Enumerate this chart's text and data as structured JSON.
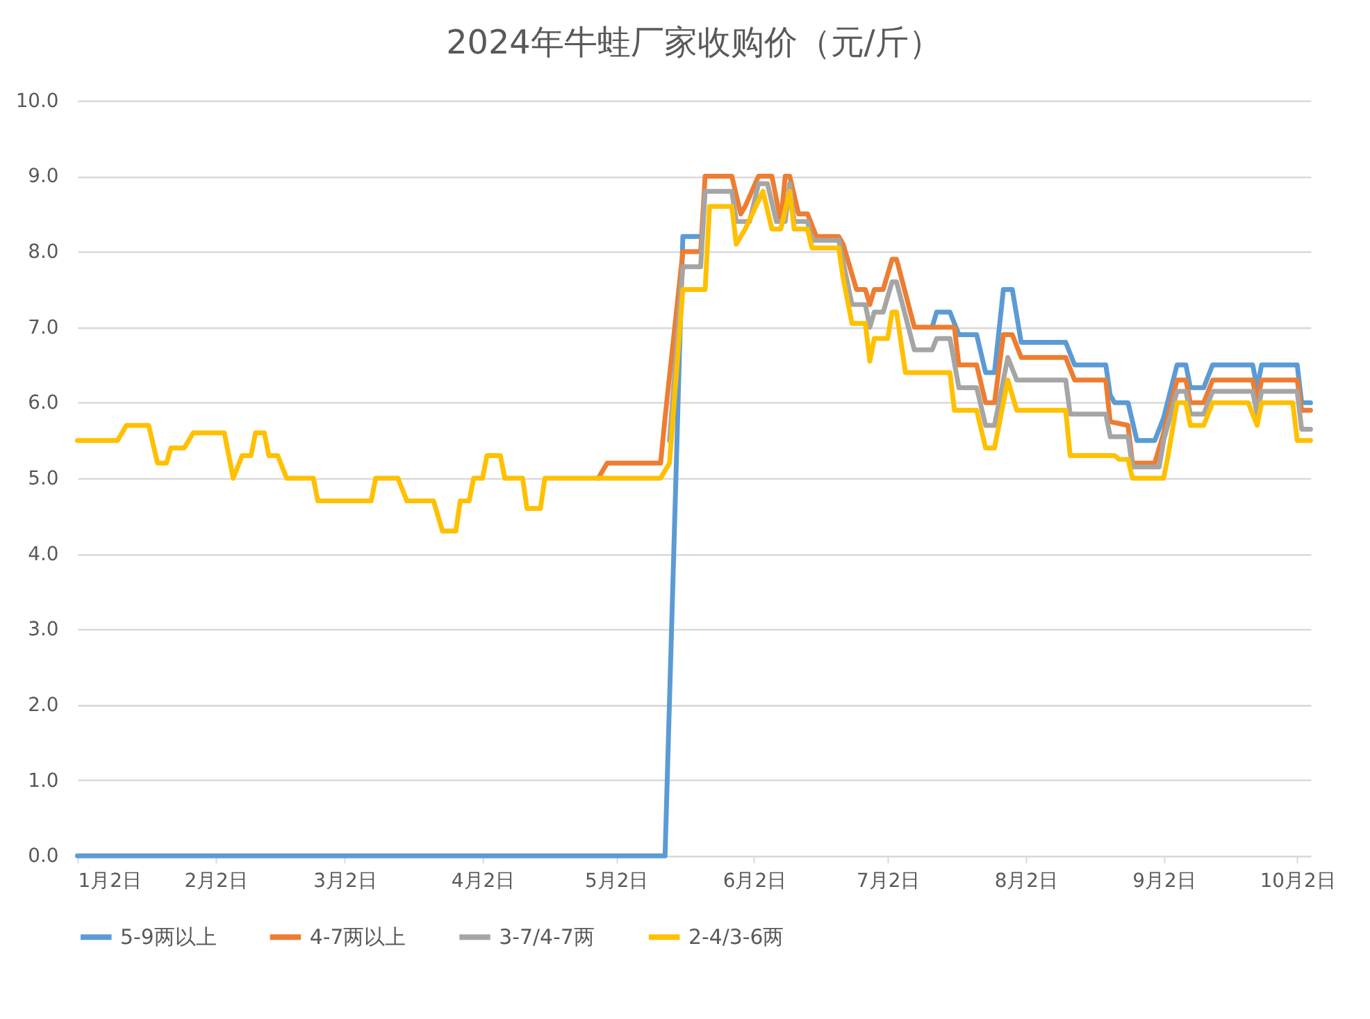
{
  "chart_data": {
    "type": "line",
    "title": "2024年牛蛙厂家收购价（元/斤）",
    "xlim": [
      "2024-01-02",
      "2024-10-05"
    ],
    "xticks": [
      {
        "value": "2024-01-02",
        "label": "1月2日"
      },
      {
        "value": "2024-02-02",
        "label": "2月2日"
      },
      {
        "value": "2024-03-02",
        "label": "3月2日"
      },
      {
        "value": "2024-04-02",
        "label": "4月2日"
      },
      {
        "value": "2024-05-02",
        "label": "5月2日"
      },
      {
        "value": "2024-06-02",
        "label": "6月2日"
      },
      {
        "value": "2024-07-02",
        "label": "7月2日"
      },
      {
        "value": "2024-08-02",
        "label": "8月2日"
      },
      {
        "value": "2024-09-02",
        "label": "9月2日"
      },
      {
        "value": "2024-10-02",
        "label": "10月2日"
      }
    ],
    "ylim": [
      0,
      10
    ],
    "yticks": [
      {
        "value": 0,
        "label": "0.0"
      },
      {
        "value": 1,
        "label": "1.0"
      },
      {
        "value": 2,
        "label": "2.0"
      },
      {
        "value": 3,
        "label": "3.0"
      },
      {
        "value": 4,
        "label": "4.0"
      },
      {
        "value": 5,
        "label": "5.0"
      },
      {
        "value": 6,
        "label": "6.0"
      },
      {
        "value": 7,
        "label": "7.0"
      },
      {
        "value": 8,
        "label": "8.0"
      },
      {
        "value": 9,
        "label": "9.0"
      },
      {
        "value": 10,
        "label": "10.0"
      }
    ],
    "grid": "y",
    "legend": "bottom",
    "marker": "none",
    "line_style": "solid",
    "series": [
      {
        "name": "5-9两以上",
        "color": "#5b9bd5",
        "x": [
          "2024-01-02",
          "2024-05-13",
          "2024-05-17",
          "2024-05-21",
          "2024-05-22",
          "2024-07-12",
          "2024-07-13",
          "2024-07-16",
          "2024-07-18",
          "2024-07-22",
          "2024-07-24",
          "2024-07-26",
          "2024-07-28",
          "2024-07-30",
          "2024-08-01",
          "2024-08-11",
          "2024-08-13",
          "2024-08-20",
          "2024-08-21",
          "2024-08-22",
          "2024-08-25",
          "2024-08-27",
          "2024-08-31",
          "2024-09-02",
          "2024-09-05",
          "2024-09-07",
          "2024-09-08",
          "2024-09-11",
          "2024-09-13",
          "2024-09-22",
          "2024-09-23",
          "2024-09-24",
          "2024-10-02",
          "2024-10-03",
          "2024-10-05"
        ],
        "values": [
          0,
          0,
          8.2,
          8.2,
          null,
          7.0,
          7.2,
          7.2,
          6.9,
          6.9,
          6.4,
          6.4,
          7.5,
          7.5,
          6.8,
          6.8,
          6.5,
          6.5,
          6.1,
          6.0,
          6.0,
          5.5,
          5.5,
          5.8,
          6.5,
          6.5,
          6.2,
          6.2,
          6.5,
          6.5,
          6.2,
          6.5,
          6.5,
          6.0,
          6.0
        ]
      },
      {
        "name": "4-7两以上",
        "color": "#ed7d31",
        "x": [
          "2024-04-28",
          "2024-04-30",
          "2024-05-12",
          "2024-05-13",
          "2024-05-17",
          "2024-05-21",
          "2024-05-22",
          "2024-05-28",
          "2024-05-30",
          "2024-05-31",
          "2024-06-03",
          "2024-06-06",
          "2024-06-08",
          "2024-06-09",
          "2024-06-10",
          "2024-06-12",
          "2024-06-14",
          "2024-06-16",
          "2024-06-21",
          "2024-06-22",
          "2024-06-25",
          "2024-06-27",
          "2024-06-28",
          "2024-06-29",
          "2024-07-01",
          "2024-07-03",
          "2024-07-04",
          "2024-07-08",
          "2024-07-17",
          "2024-07-18",
          "2024-07-22",
          "2024-07-24",
          "2024-07-26",
          "2024-07-28",
          "2024-07-30",
          "2024-08-01",
          "2024-08-11",
          "2024-08-13",
          "2024-08-20",
          "2024-08-21",
          "2024-08-25",
          "2024-08-26",
          "2024-08-31",
          "2024-09-02",
          "2024-09-05",
          "2024-09-07",
          "2024-09-08",
          "2024-09-11",
          "2024-09-13",
          "2024-09-22",
          "2024-09-23",
          "2024-09-24",
          "2024-10-02",
          "2024-10-03",
          "2024-10-05"
        ],
        "values": [
          5.0,
          5.2,
          5.2,
          5.8,
          8.0,
          8.0,
          9.0,
          9.0,
          8.5,
          8.6,
          9.0,
          9.0,
          8.4,
          9.0,
          9.0,
          8.5,
          8.5,
          8.2,
          8.2,
          8.1,
          7.5,
          7.5,
          7.3,
          7.5,
          7.5,
          7.9,
          7.9,
          7.0,
          7.0,
          6.5,
          6.5,
          6.0,
          6.0,
          6.9,
          6.9,
          6.6,
          6.6,
          6.3,
          6.3,
          5.75,
          5.7,
          5.2,
          5.2,
          5.6,
          6.3,
          6.3,
          6.0,
          6.0,
          6.3,
          6.3,
          6.0,
          6.3,
          6.3,
          5.9,
          5.9
        ]
      },
      {
        "name": "3-7/4-7两",
        "color": "#a5a5a5",
        "x": [
          "2024-05-14",
          "2024-05-17",
          "2024-05-21",
          "2024-05-22",
          "2024-05-28",
          "2024-05-29",
          "2024-06-01",
          "2024-06-03",
          "2024-06-05",
          "2024-06-07",
          "2024-06-09",
          "2024-06-10",
          "2024-06-11",
          "2024-06-14",
          "2024-06-15",
          "2024-06-21",
          "2024-06-24",
          "2024-06-27",
          "2024-06-28",
          "2024-06-29",
          "2024-07-01",
          "2024-07-03",
          "2024-07-04",
          "2024-07-08",
          "2024-07-12",
          "2024-07-13",
          "2024-07-16",
          "2024-07-18",
          "2024-07-22",
          "2024-07-24",
          "2024-07-26",
          "2024-07-29",
          "2024-07-31",
          "2024-08-11",
          "2024-08-12",
          "2024-08-20",
          "2024-08-21",
          "2024-08-25",
          "2024-08-26",
          "2024-09-01",
          "2024-09-02",
          "2024-09-05",
          "2024-09-07",
          "2024-09-08",
          "2024-09-11",
          "2024-09-13",
          "2024-09-22",
          "2024-09-23",
          "2024-09-24",
          "2024-10-02",
          "2024-10-03",
          "2024-10-05"
        ],
        "values": [
          5.5,
          7.8,
          7.8,
          8.8,
          8.8,
          8.4,
          8.4,
          8.9,
          8.9,
          8.4,
          8.4,
          8.9,
          8.4,
          8.4,
          8.15,
          8.15,
          7.3,
          7.3,
          7.0,
          7.2,
          7.2,
          7.6,
          7.6,
          6.7,
          6.7,
          6.85,
          6.85,
          6.2,
          6.2,
          5.7,
          5.7,
          6.6,
          6.3,
          6.3,
          5.85,
          5.85,
          5.55,
          5.55,
          5.15,
          5.15,
          5.5,
          6.15,
          6.15,
          5.85,
          5.85,
          6.15,
          6.15,
          5.85,
          6.15,
          6.15,
          5.65,
          5.65
        ]
      },
      {
        "name": "2-4/3-6两",
        "color": "#ffc000",
        "x": [
          "2024-01-02",
          "2024-01-11",
          "2024-01-13",
          "2024-01-18",
          "2024-01-20",
          "2024-01-22",
          "2024-01-23",
          "2024-01-26",
          "2024-01-28",
          "2024-02-04",
          "2024-02-06",
          "2024-02-08",
          "2024-02-10",
          "2024-02-11",
          "2024-02-13",
          "2024-02-14",
          "2024-02-16",
          "2024-02-18",
          "2024-02-24",
          "2024-02-25",
          "2024-03-08",
          "2024-03-09",
          "2024-03-14",
          "2024-03-16",
          "2024-03-22",
          "2024-03-24",
          "2024-03-27",
          "2024-03-28",
          "2024-03-30",
          "2024-03-31",
          "2024-04-02",
          "2024-04-03",
          "2024-04-06",
          "2024-04-07",
          "2024-04-11",
          "2024-04-12",
          "2024-04-15",
          "2024-04-16",
          "2024-05-12",
          "2024-05-14",
          "2024-05-17",
          "2024-05-22",
          "2024-05-23",
          "2024-05-28",
          "2024-05-29",
          "2024-05-31",
          "2024-06-04",
          "2024-06-06",
          "2024-06-08",
          "2024-06-10",
          "2024-06-11",
          "2024-06-14",
          "2024-06-15",
          "2024-06-21",
          "2024-06-22",
          "2024-06-24",
          "2024-06-27",
          "2024-06-28",
          "2024-06-29",
          "2024-07-02",
          "2024-07-03",
          "2024-07-04",
          "2024-07-06",
          "2024-07-16",
          "2024-07-17",
          "2024-07-22",
          "2024-07-24",
          "2024-07-26",
          "2024-07-29",
          "2024-07-31",
          "2024-08-11",
          "2024-08-12",
          "2024-08-22",
          "2024-08-23",
          "2024-08-25",
          "2024-08-26",
          "2024-09-02",
          "2024-09-03",
          "2024-09-05",
          "2024-09-07",
          "2024-09-08",
          "2024-09-11",
          "2024-09-13",
          "2024-09-21",
          "2024-09-23",
          "2024-09-24",
          "2024-10-01",
          "2024-10-02",
          "2024-10-05"
        ],
        "values": [
          5.5,
          5.5,
          5.7,
          5.7,
          5.2,
          5.2,
          5.4,
          5.4,
          5.6,
          5.6,
          5.0,
          5.3,
          5.3,
          5.6,
          5.6,
          5.3,
          5.3,
          5.0,
          5.0,
          4.7,
          4.7,
          5.0,
          5.0,
          4.7,
          4.7,
          4.3,
          4.3,
          4.7,
          4.7,
          5.0,
          5.0,
          5.3,
          5.3,
          5.0,
          5.0,
          4.6,
          4.6,
          5.0,
          5.0,
          5.2,
          7.5,
          7.5,
          8.6,
          8.6,
          8.1,
          8.3,
          8.8,
          8.3,
          8.3,
          8.8,
          8.3,
          8.3,
          8.05,
          8.05,
          7.65,
          7.05,
          7.05,
          6.55,
          6.85,
          6.85,
          7.2,
          7.2,
          6.4,
          6.4,
          5.9,
          5.9,
          5.4,
          5.4,
          6.3,
          5.9,
          5.9,
          5.3,
          5.3,
          5.25,
          5.25,
          5.0,
          5.0,
          5.3,
          6.0,
          6.0,
          5.7,
          5.7,
          6.0,
          6.0,
          5.7,
          6.0,
          6.0,
          5.5,
          5.5
        ]
      }
    ]
  }
}
